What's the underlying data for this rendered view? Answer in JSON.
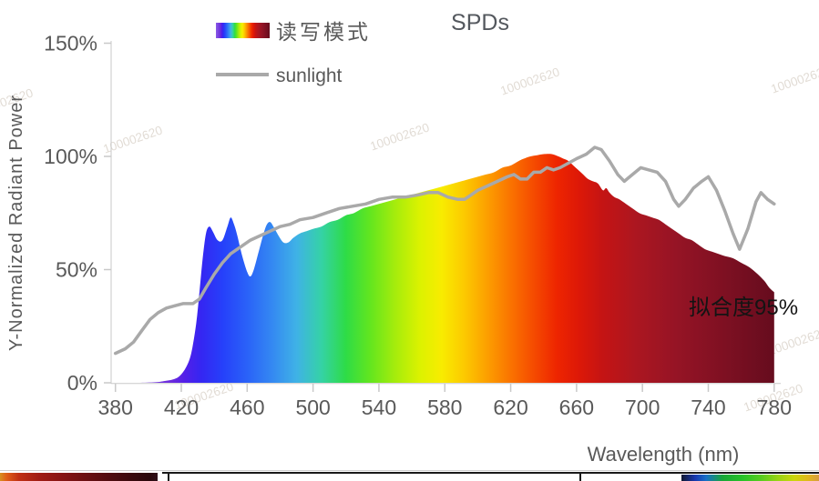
{
  "watermark_text": "100002620",
  "chart_data": {
    "type": "area",
    "title": "SPDs",
    "xlabel": "Wavelength (nm)",
    "ylabel": "Y-Normalized Radiant Power",
    "annotation": "拟合度95%",
    "x_ticks": [
      380,
      420,
      460,
      500,
      540,
      580,
      620,
      660,
      700,
      740,
      780
    ],
    "y_ticks": [
      {
        "label": "0%",
        "value": 0
      },
      {
        "label": "50%",
        "value": 50
      },
      {
        "label": "100%",
        "value": 100
      },
      {
        "label": "150%",
        "value": 150
      }
    ],
    "xlim": [
      380,
      780
    ],
    "ylim": [
      0,
      150
    ],
    "grid": false,
    "legend_position": "top-center",
    "colors": {
      "sunlight_line": "#A9A9A9",
      "axis_line": "#C9C9C9",
      "tick_text": "#595959",
      "title_text": "#54585E",
      "annotation_text": "#141414"
    },
    "spectrum_gradient": [
      [
        0.0,
        "#8A5CE6"
      ],
      [
        0.085,
        "#6B2BDC"
      ],
      [
        0.105,
        "#531FE8"
      ],
      [
        0.13,
        "#3526F2"
      ],
      [
        0.1625,
        "#2640FA"
      ],
      [
        0.2,
        "#2A62F8"
      ],
      [
        0.2375,
        "#3488F2"
      ],
      [
        0.275,
        "#3FB2E6"
      ],
      [
        0.3125,
        "#35D2A6"
      ],
      [
        0.35,
        "#2EDC46"
      ],
      [
        0.3875,
        "#64E61E"
      ],
      [
        0.425,
        "#A6EC0C"
      ],
      [
        0.4625,
        "#DCF200"
      ],
      [
        0.495,
        "#F8EC00"
      ],
      [
        0.53,
        "#FCC900"
      ],
      [
        0.565,
        "#FC9E00"
      ],
      [
        0.6,
        "#FA7300"
      ],
      [
        0.635,
        "#F54B00"
      ],
      [
        0.67,
        "#EE2500"
      ],
      [
        0.705,
        "#DC1808"
      ],
      [
        0.74,
        "#C41414"
      ],
      [
        0.79,
        "#AC1620"
      ],
      [
        0.85,
        "#961425"
      ],
      [
        0.925,
        "#7E1022"
      ],
      [
        1.0,
        "#660C1E"
      ]
    ],
    "series": [
      {
        "name": "读写模式",
        "type": "area",
        "fill": "spectrum-gradient",
        "points": [
          [
            380,
            0
          ],
          [
            395,
            0
          ],
          [
            405,
            0.3
          ],
          [
            410,
            0.8
          ],
          [
            415,
            1.5
          ],
          [
            419,
            3
          ],
          [
            423,
            7
          ],
          [
            426,
            13
          ],
          [
            429,
            26
          ],
          [
            431,
            40
          ],
          [
            433,
            55
          ],
          [
            435,
            66
          ],
          [
            437,
            69
          ],
          [
            439,
            67
          ],
          [
            442,
            63
          ],
          [
            445,
            63
          ],
          [
            448,
            69
          ],
          [
            450,
            73
          ],
          [
            452,
            70
          ],
          [
            454,
            65
          ],
          [
            457,
            56
          ],
          [
            460,
            49
          ],
          [
            462,
            47
          ],
          [
            464,
            50
          ],
          [
            467,
            58
          ],
          [
            470,
            66
          ],
          [
            472,
            70
          ],
          [
            474,
            71
          ],
          [
            476,
            69
          ],
          [
            479,
            65
          ],
          [
            482,
            62
          ],
          [
            485,
            62
          ],
          [
            488,
            64
          ],
          [
            492,
            66
          ],
          [
            496,
            67
          ],
          [
            500,
            68
          ],
          [
            505,
            69
          ],
          [
            510,
            71
          ],
          [
            515,
            72
          ],
          [
            520,
            74
          ],
          [
            525,
            75
          ],
          [
            530,
            77
          ],
          [
            535,
            78
          ],
          [
            540,
            79
          ],
          [
            545,
            80
          ],
          [
            550,
            81
          ],
          [
            555,
            82
          ],
          [
            560,
            83
          ],
          [
            565,
            84
          ],
          [
            570,
            85
          ],
          [
            575,
            86
          ],
          [
            580,
            87
          ],
          [
            585,
            88
          ],
          [
            590,
            89
          ],
          [
            595,
            90
          ],
          [
            600,
            91
          ],
          [
            605,
            92
          ],
          [
            610,
            93
          ],
          [
            615,
            95
          ],
          [
            620,
            96
          ],
          [
            625,
            98
          ],
          [
            628,
            99
          ],
          [
            632,
            100
          ],
          [
            636,
            100.5
          ],
          [
            640,
            101
          ],
          [
            645,
            101
          ],
          [
            649,
            100
          ],
          [
            652,
            99
          ],
          [
            655,
            98
          ],
          [
            658,
            96
          ],
          [
            661,
            94
          ],
          [
            664,
            92
          ],
          [
            667,
            90
          ],
          [
            670,
            89
          ],
          [
            673,
            88
          ],
          [
            676,
            85
          ],
          [
            678,
            86
          ],
          [
            680,
            84
          ],
          [
            683,
            82
          ],
          [
            686,
            81
          ],
          [
            690,
            79
          ],
          [
            694,
            77
          ],
          [
            698,
            75
          ],
          [
            702,
            74
          ],
          [
            706,
            73
          ],
          [
            710,
            72
          ],
          [
            714,
            70
          ],
          [
            718,
            68
          ],
          [
            722,
            66
          ],
          [
            726,
            64
          ],
          [
            730,
            63
          ],
          [
            734,
            61
          ],
          [
            738,
            59
          ],
          [
            742,
            58
          ],
          [
            746,
            57
          ],
          [
            750,
            56
          ],
          [
            755,
            55
          ],
          [
            760,
            53
          ],
          [
            765,
            51
          ],
          [
            770,
            48
          ],
          [
            774,
            45
          ],
          [
            777,
            42
          ],
          [
            780,
            40
          ]
        ]
      },
      {
        "name": "sunlight",
        "type": "line",
        "color": "#A9A9A9",
        "points": [
          [
            380,
            13
          ],
          [
            386,
            15
          ],
          [
            391,
            18
          ],
          [
            396,
            23
          ],
          [
            401,
            28
          ],
          [
            406,
            31
          ],
          [
            411,
            33
          ],
          [
            416,
            34
          ],
          [
            421,
            35
          ],
          [
            427,
            35
          ],
          [
            431,
            37
          ],
          [
            435,
            42
          ],
          [
            440,
            48
          ],
          [
            445,
            53
          ],
          [
            450,
            57
          ],
          [
            456,
            60
          ],
          [
            462,
            63
          ],
          [
            468,
            65
          ],
          [
            474,
            67
          ],
          [
            480,
            69
          ],
          [
            486,
            70
          ],
          [
            492,
            72
          ],
          [
            500,
            73
          ],
          [
            508,
            75
          ],
          [
            516,
            77
          ],
          [
            524,
            78
          ],
          [
            532,
            79
          ],
          [
            540,
            81
          ],
          [
            548,
            82
          ],
          [
            556,
            82
          ],
          [
            564,
            83
          ],
          [
            570,
            84
          ],
          [
            576,
            84
          ],
          [
            582,
            82
          ],
          [
            588,
            81
          ],
          [
            592,
            81
          ],
          [
            596,
            83
          ],
          [
            600,
            85
          ],
          [
            606,
            87
          ],
          [
            612,
            89
          ],
          [
            618,
            91
          ],
          [
            622,
            92
          ],
          [
            626,
            90
          ],
          [
            630,
            90
          ],
          [
            634,
            93
          ],
          [
            638,
            93
          ],
          [
            642,
            95
          ],
          [
            646,
            94
          ],
          [
            650,
            95
          ],
          [
            655,
            97
          ],
          [
            660,
            99
          ],
          [
            666,
            101
          ],
          [
            671,
            104
          ],
          [
            675,
            103
          ],
          [
            680,
            98
          ],
          [
            685,
            92
          ],
          [
            689,
            89
          ],
          [
            694,
            92
          ],
          [
            699,
            95
          ],
          [
            704,
            94
          ],
          [
            709,
            93
          ],
          [
            714,
            89
          ],
          [
            719,
            81
          ],
          [
            722,
            78
          ],
          [
            726,
            81
          ],
          [
            731,
            86
          ],
          [
            736,
            89
          ],
          [
            740,
            91
          ],
          [
            745,
            85
          ],
          [
            750,
            76
          ],
          [
            755,
            66
          ],
          [
            759,
            59
          ],
          [
            764,
            68
          ],
          [
            769,
            80
          ],
          [
            772,
            84
          ],
          [
            776,
            81
          ],
          [
            780,
            79
          ]
        ]
      }
    ]
  }
}
